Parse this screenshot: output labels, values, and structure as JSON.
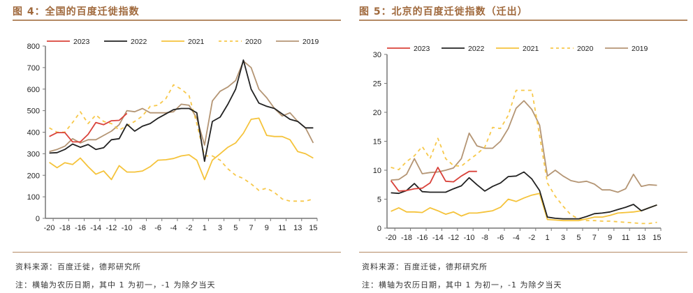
{
  "charts": [
    {
      "id": "left",
      "title": "图 4：全国的百度迁徙指数",
      "source": "资料来源：百度迁徙，德邦研究所",
      "note": "注：横轴为农历日期，其中 1 为初一，-1 为除夕当天"
    },
    {
      "id": "right",
      "title": "图 5：北京的百度迁徙指数（迁出）",
      "source": "资料来源：百度迁徙，德邦研究所",
      "note": "注：横轴为农历日期，其中 1 为初一，-1 为除夕当天"
    }
  ],
  "colors": {
    "title": "#a0693c",
    "rule": "#b48a64",
    "2023": "#d9423a",
    "2022": "#222222",
    "2021": "#f5c33b",
    "2020": "#f7c84a",
    "2019": "#b49574"
  },
  "chart_data": [
    {
      "type": "line",
      "title": "图 4：全国的百度迁徙指数",
      "xlabel": "",
      "ylabel": "",
      "ylim": [
        0,
        800
      ],
      "yticks": [
        0,
        100,
        200,
        300,
        400,
        500,
        600,
        700,
        800
      ],
      "x": [
        -20,
        -19,
        -18,
        -17,
        -16,
        -15,
        -14,
        -13,
        -12,
        -11,
        -10,
        -9,
        -8,
        -7,
        -6,
        -5,
        -4,
        -3,
        -2,
        -1,
        1,
        2,
        3,
        4,
        5,
        6,
        7,
        8,
        9,
        10,
        11,
        12,
        13,
        14,
        15
      ],
      "xtick_labels": [
        "-20",
        "-18",
        "-16",
        "-14",
        "-12",
        "-10",
        "-8",
        "-6",
        "-4",
        "-2",
        "1",
        "3",
        "5",
        "7",
        "9",
        "11",
        "13",
        "15"
      ],
      "grid": false,
      "legend": "top",
      "series": [
        {
          "name": "2023",
          "style": "solid",
          "values": [
            380,
            398,
            398,
            355,
            355,
            390,
            445,
            435,
            453,
            455,
            487,
            null,
            null,
            null,
            null,
            null,
            null,
            null,
            null,
            null,
            null,
            null,
            null,
            null,
            null,
            null,
            null,
            null,
            null,
            null,
            null,
            null,
            null,
            null,
            null
          ]
        },
        {
          "name": "2022",
          "style": "solid",
          "values": [
            303,
            305,
            320,
            345,
            330,
            343,
            320,
            328,
            365,
            370,
            437,
            405,
            428,
            440,
            465,
            485,
            505,
            510,
            510,
            490,
            265,
            450,
            470,
            530,
            600,
            735,
            600,
            535,
            520,
            510,
            485,
            460,
            450,
            420,
            420
          ]
        },
        {
          "name": "2021",
          "style": "solid",
          "values": [
            260,
            235,
            258,
            250,
            280,
            240,
            205,
            220,
            180,
            245,
            215,
            215,
            220,
            240,
            270,
            272,
            278,
            290,
            295,
            270,
            180,
            270,
            300,
            330,
            350,
            395,
            460,
            465,
            385,
            380,
            380,
            365,
            310,
            300,
            280
          ]
        },
        {
          "name": "2020",
          "style": "dashed",
          "values": [
            420,
            400,
            400,
            445,
            495,
            440,
            480,
            450,
            440,
            410,
            430,
            450,
            475,
            520,
            525,
            555,
            620,
            600,
            570,
            440,
            290,
            290,
            270,
            230,
            200,
            185,
            160,
            130,
            140,
            120,
            90,
            80,
            80,
            80,
            90
          ]
        },
        {
          "name": "2019",
          "style": "solid",
          "values": [
            310,
            320,
            335,
            370,
            350,
            365,
            365,
            385,
            405,
            435,
            500,
            495,
            510,
            490,
            490,
            490,
            495,
            530,
            525,
            465,
            340,
            545,
            590,
            610,
            640,
            730,
            700,
            600,
            560,
            510,
            475,
            490,
            450,
            420,
            350
          ]
        }
      ]
    },
    {
      "type": "line",
      "title": "图 5：北京的百度迁徙指数（迁出）",
      "xlabel": "",
      "ylabel": "",
      "ylim": [
        0,
        30
      ],
      "yticks": [
        0,
        5,
        10,
        15,
        20,
        25,
        30
      ],
      "x": [
        -20,
        -19,
        -18,
        -17,
        -16,
        -15,
        -14,
        -13,
        -12,
        -11,
        -10,
        -9,
        -8,
        -7,
        -6,
        -5,
        -4,
        -3,
        -2,
        -1,
        1,
        2,
        3,
        4,
        5,
        6,
        7,
        8,
        9,
        10,
        11,
        12,
        13,
        14,
        15
      ],
      "xtick_labels": [
        "-20",
        "-18",
        "-16",
        "-14",
        "-12",
        "-10",
        "-8",
        "-6",
        "-4",
        "-2",
        "1",
        "3",
        "5",
        "7",
        "9",
        "11",
        "13",
        "15"
      ],
      "grid": false,
      "legend": "top",
      "series": [
        {
          "name": "2023",
          "style": "solid",
          "values": [
            8.2,
            6.4,
            6.5,
            6.8,
            6.9,
            7.8,
            10.5,
            8.1,
            8.0,
            9.0,
            9.8,
            9.8,
            null,
            null,
            null,
            null,
            null,
            null,
            null,
            null,
            null,
            null,
            null,
            null,
            null,
            null,
            null,
            null,
            null,
            null,
            null,
            null,
            null,
            null,
            null
          ]
        },
        {
          "name": "2022",
          "style": "solid",
          "values": [
            6.1,
            6.0,
            6.5,
            7.7,
            6.3,
            6.2,
            6.2,
            6.2,
            6.8,
            7.3,
            8.7,
            7.5,
            6.4,
            7.2,
            7.8,
            8.9,
            9.0,
            9.7,
            8.5,
            6.5,
            1.9,
            1.7,
            1.6,
            1.6,
            1.6,
            2.0,
            2.5,
            2.6,
            2.8,
            3.2,
            3.6,
            4.1,
            3.0,
            3.5,
            4.0
          ]
        },
        {
          "name": "2021",
          "style": "solid",
          "values": [
            2.9,
            3.5,
            2.8,
            2.8,
            2.7,
            3.5,
            3.0,
            2.4,
            2.8,
            2.1,
            2.6,
            2.6,
            2.8,
            3.0,
            3.6,
            5.0,
            4.6,
            5.2,
            5.7,
            6.0,
            1.5,
            1.4,
            1.3,
            1.3,
            1.3,
            1.6,
            1.9,
            1.9,
            2.2,
            2.6,
            2.7,
            2.8,
            3.0,
            3.5,
            4.0
          ]
        },
        {
          "name": "2020",
          "style": "dashed",
          "values": [
            10.5,
            10.1,
            11.5,
            12.5,
            14.1,
            12.0,
            15.5,
            12.0,
            10.8,
            10.7,
            11.8,
            12.8,
            14.0,
            17.4,
            17.2,
            19.5,
            23.8,
            23.8,
            23.8,
            16.0,
            7.8,
            5.5,
            3.8,
            2.3,
            1.6,
            1.3,
            1.3,
            1.2,
            1.2,
            1.1,
            1.0,
            0.9,
            0.8,
            0.8,
            1.0
          ]
        },
        {
          "name": "2019",
          "style": "solid",
          "values": [
            8.3,
            8.4,
            9.3,
            12.0,
            9.4,
            9.6,
            9.7,
            10.0,
            10.4,
            12.0,
            16.4,
            14.2,
            13.8,
            13.8,
            15.0,
            17.2,
            20.7,
            22.0,
            20.5,
            17.8,
            9.0,
            10.0,
            9.0,
            8.2,
            7.9,
            8.1,
            7.6,
            6.6,
            6.6,
            6.2,
            6.8,
            9.3,
            7.2,
            7.5,
            7.4
          ]
        }
      ]
    }
  ]
}
